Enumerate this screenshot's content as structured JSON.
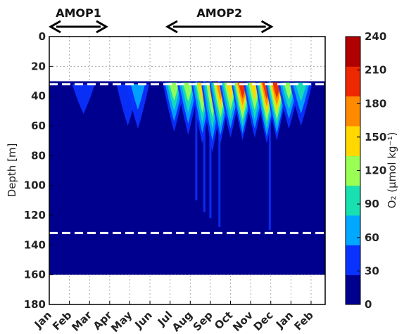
{
  "chart_data": {
    "type": "heatmap",
    "ylabel": "Depth [m]",
    "ylim": [
      180,
      0
    ],
    "yticks": [
      0,
      20,
      40,
      60,
      80,
      100,
      120,
      140,
      160,
      180
    ],
    "x_months": [
      "Jan",
      "Feb",
      "Mar",
      "Apr",
      "May",
      "Jun",
      "Jul",
      "Aug",
      "Sep",
      "Oct",
      "Nov",
      "Dec",
      "Jan",
      "Feb"
    ],
    "grid": true,
    "data_depth_range_m": [
      30,
      160
    ],
    "dashed_lines_depth_m": [
      32,
      132
    ],
    "campaigns": [
      {
        "label": "AMOP1",
        "month_start": 0,
        "month_end": 2.9
      },
      {
        "label": "AMOP2",
        "month_start": 5.8,
        "month_end": 11.1
      }
    ],
    "colorbar": {
      "label": "O₂ (μmol kg⁻¹)",
      "ticks": [
        0,
        30,
        60,
        90,
        120,
        150,
        180,
        210,
        240
      ],
      "colors": [
        "#00008f",
        "#0a32ff",
        "#00a8ff",
        "#18e0b0",
        "#9aff55",
        "#ffd800",
        "#ff8a00",
        "#ee2800",
        "#b00000"
      ]
    },
    "oxygen_events": [
      {
        "month": 1.7,
        "top_m": 32,
        "bottom_m": 52,
        "max_o2": 40
      },
      {
        "month": 3.9,
        "top_m": 32,
        "bottom_m": 60,
        "max_o2": 55
      },
      {
        "month": 4.4,
        "top_m": 32,
        "bottom_m": 62,
        "max_o2": 60
      },
      {
        "month": 6.2,
        "top_m": 31,
        "bottom_m": 64,
        "max_o2": 120
      },
      {
        "month": 6.9,
        "top_m": 31,
        "bottom_m": 66,
        "max_o2": 140
      },
      {
        "month": 7.6,
        "top_m": 31,
        "bottom_m": 72,
        "max_o2": 150
      },
      {
        "month": 8.1,
        "top_m": 31,
        "bottom_m": 78,
        "max_o2": 165
      },
      {
        "month": 8.5,
        "top_m": 31,
        "bottom_m": 72,
        "max_o2": 200
      },
      {
        "month": 9.0,
        "top_m": 31,
        "bottom_m": 68,
        "max_o2": 160
      },
      {
        "month": 9.6,
        "top_m": 31,
        "bottom_m": 70,
        "max_o2": 210
      },
      {
        "month": 10.2,
        "top_m": 31,
        "bottom_m": 68,
        "max_o2": 170
      },
      {
        "month": 10.8,
        "top_m": 31,
        "bottom_m": 72,
        "max_o2": 225
      },
      {
        "month": 11.3,
        "top_m": 31,
        "bottom_m": 70,
        "max_o2": 210
      },
      {
        "month": 11.9,
        "top_m": 31,
        "bottom_m": 62,
        "max_o2": 130
      },
      {
        "month": 12.5,
        "top_m": 31,
        "bottom_m": 60,
        "max_o2": 95
      }
    ],
    "deep_intrusions": [
      {
        "month": 7.3,
        "bottom_m": 110
      },
      {
        "month": 7.7,
        "bottom_m": 118
      },
      {
        "month": 8.0,
        "bottom_m": 122
      },
      {
        "month": 8.45,
        "bottom_m": 128
      },
      {
        "month": 10.95,
        "bottom_m": 130
      }
    ]
  }
}
